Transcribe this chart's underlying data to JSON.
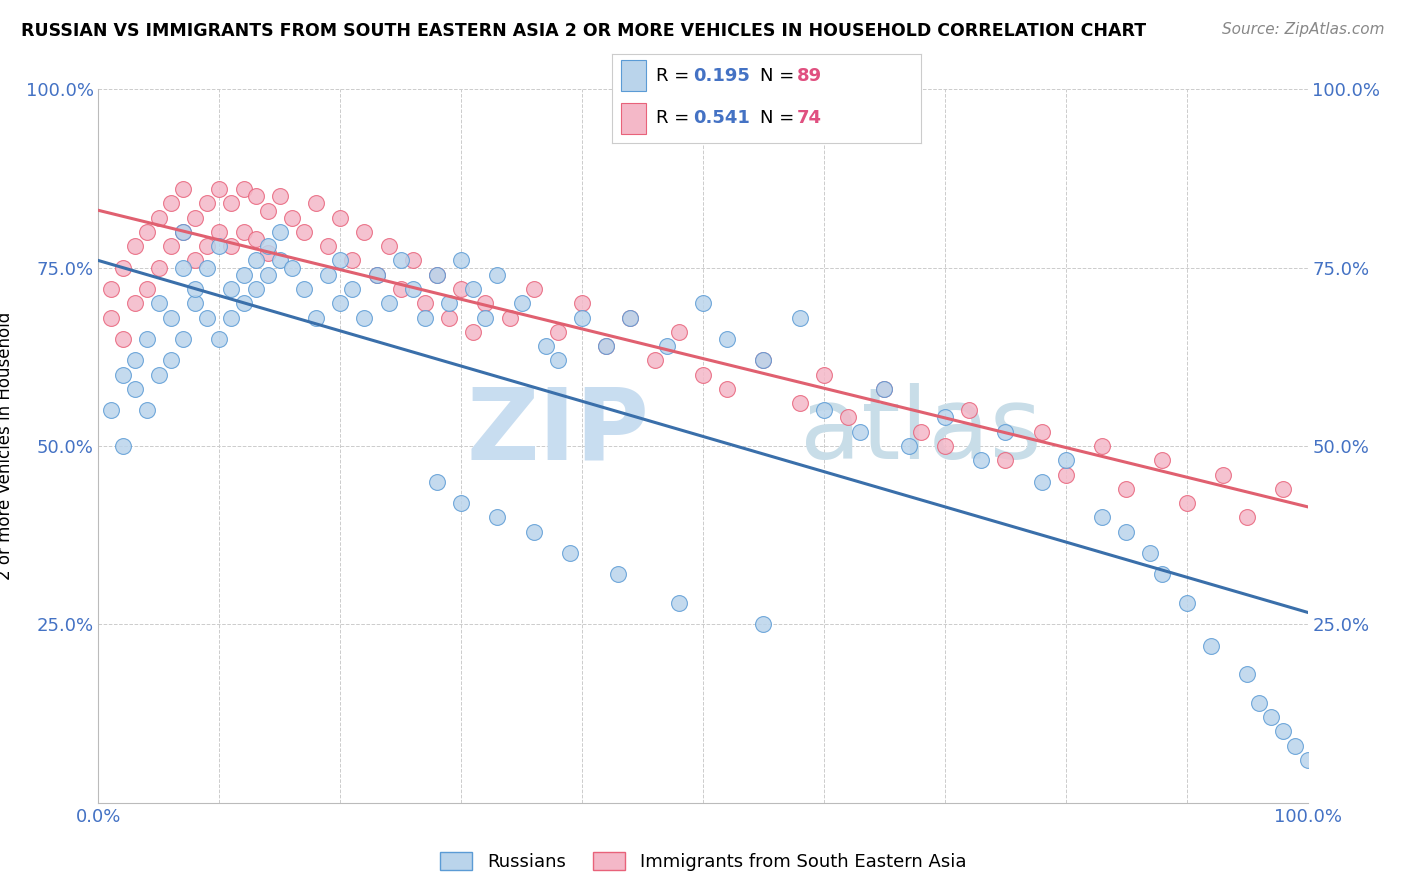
{
  "title": "RUSSIAN VS IMMIGRANTS FROM SOUTH EASTERN ASIA 2 OR MORE VEHICLES IN HOUSEHOLD CORRELATION CHART",
  "source": "Source: ZipAtlas.com",
  "ylabel": "2 or more Vehicles in Household",
  "legend_russian": "Russians",
  "legend_sea": "Immigrants from South Eastern Asia",
  "r_russian": "0.195",
  "n_russian": "89",
  "r_sea": "0.541",
  "n_sea": "74",
  "color_russian_fill": "#bad4eb",
  "color_russian_edge": "#5b9bd5",
  "color_sea_fill": "#f4b8c8",
  "color_sea_edge": "#e8627a",
  "color_russian_line": "#3a6faa",
  "color_sea_line": "#e06070",
  "blue_text": "#4472c4",
  "pink_text": "#e05080",
  "gray_text": "#888888",
  "watermark_zip_color": "#c8ddf0",
  "watermark_atlas_color": "#c8dde8",
  "tick_label_color": "#4472c4",
  "russian_x": [
    1,
    2,
    2,
    3,
    3,
    4,
    4,
    5,
    5,
    6,
    6,
    7,
    7,
    7,
    8,
    8,
    9,
    9,
    10,
    10,
    11,
    11,
    12,
    12,
    13,
    13,
    14,
    14,
    15,
    15,
    16,
    17,
    18,
    19,
    20,
    20,
    21,
    22,
    23,
    24,
    25,
    26,
    27,
    28,
    29,
    30,
    31,
    32,
    33,
    35,
    37,
    38,
    40,
    42,
    44,
    47,
    50,
    52,
    55,
    58,
    60,
    63,
    65,
    67,
    70,
    73,
    75,
    78,
    80,
    83,
    85,
    87,
    88,
    90,
    92,
    95,
    96,
    97,
    98,
    99,
    100,
    28,
    30,
    33,
    36,
    39,
    43,
    48,
    55
  ],
  "russian_y": [
    55,
    60,
    50,
    62,
    58,
    55,
    65,
    70,
    60,
    68,
    62,
    75,
    65,
    80,
    70,
    72,
    68,
    75,
    65,
    78,
    72,
    68,
    74,
    70,
    76,
    72,
    78,
    74,
    80,
    76,
    75,
    72,
    68,
    74,
    70,
    76,
    72,
    68,
    74,
    70,
    76,
    72,
    68,
    74,
    70,
    76,
    72,
    68,
    74,
    70,
    64,
    62,
    68,
    64,
    68,
    64,
    70,
    65,
    62,
    68,
    55,
    52,
    58,
    50,
    54,
    48,
    52,
    45,
    48,
    40,
    38,
    35,
    32,
    28,
    22,
    18,
    14,
    12,
    10,
    8,
    6,
    45,
    42,
    40,
    38,
    35,
    32,
    28,
    25
  ],
  "sea_x": [
    1,
    1,
    2,
    2,
    3,
    3,
    4,
    4,
    5,
    5,
    6,
    6,
    7,
    7,
    8,
    8,
    9,
    9,
    10,
    10,
    11,
    11,
    12,
    12,
    13,
    13,
    14,
    14,
    15,
    16,
    17,
    18,
    19,
    20,
    21,
    22,
    23,
    24,
    25,
    26,
    27,
    28,
    29,
    30,
    31,
    32,
    34,
    36,
    38,
    40,
    42,
    44,
    46,
    48,
    50,
    52,
    55,
    58,
    60,
    62,
    65,
    68,
    70,
    72,
    75,
    78,
    80,
    83,
    85,
    88,
    90,
    93,
    95,
    98
  ],
  "sea_y": [
    68,
    72,
    65,
    75,
    70,
    78,
    72,
    80,
    75,
    82,
    78,
    84,
    80,
    86,
    82,
    76,
    84,
    78,
    86,
    80,
    84,
    78,
    86,
    80,
    85,
    79,
    83,
    77,
    85,
    82,
    80,
    84,
    78,
    82,
    76,
    80,
    74,
    78,
    72,
    76,
    70,
    74,
    68,
    72,
    66,
    70,
    68,
    72,
    66,
    70,
    64,
    68,
    62,
    66,
    60,
    58,
    62,
    56,
    60,
    54,
    58,
    52,
    50,
    55,
    48,
    52,
    46,
    50,
    44,
    48,
    42,
    46,
    40,
    44
  ]
}
